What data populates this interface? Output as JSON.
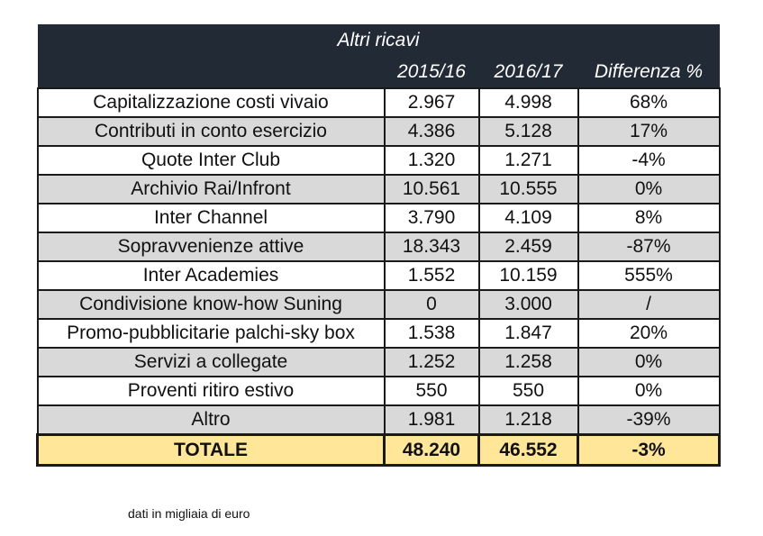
{
  "table": {
    "title": "Altri ricavi",
    "columns": [
      "",
      "2015/16",
      "2016/17",
      "Differenza %"
    ],
    "rows": [
      {
        "label": "Capitalizzazione costi vivaio",
        "y2015_16": "2.967",
        "y2016_17": "4.998",
        "diff": "68%"
      },
      {
        "label": "Contributi in conto esercizio",
        "y2015_16": "4.386",
        "y2016_17": "5.128",
        "diff": "17%"
      },
      {
        "label": "Quote Inter Club",
        "y2015_16": "1.320",
        "y2016_17": "1.271",
        "diff": "-4%"
      },
      {
        "label": "Archivio Rai/Infront",
        "y2015_16": "10.561",
        "y2016_17": "10.555",
        "diff": "0%"
      },
      {
        "label": "Inter Channel",
        "y2015_16": "3.790",
        "y2016_17": "4.109",
        "diff": "8%"
      },
      {
        "label": "Sopravvenienze attive",
        "y2015_16": "18.343",
        "y2016_17": "2.459",
        "diff": "-87%"
      },
      {
        "label": "Inter Academies",
        "y2015_16": "1.552",
        "y2016_17": "10.159",
        "diff": "555%"
      },
      {
        "label": "Condivisione know-how Suning",
        "y2015_16": "0",
        "y2016_17": "3.000",
        "diff": "/"
      },
      {
        "label": "Promo-pubblicitarie palchi-sky box",
        "y2015_16": "1.538",
        "y2016_17": "1.847",
        "diff": "20%"
      },
      {
        "label": "Servizi a collegate",
        "y2015_16": "1.252",
        "y2016_17": "1.258",
        "diff": "0%"
      },
      {
        "label": "Proventi ritiro estivo",
        "y2015_16": "550",
        "y2016_17": "550",
        "diff": "0%"
      },
      {
        "label": "Altro",
        "y2015_16": "1.981",
        "y2016_17": "1.218",
        "diff": "-39%"
      }
    ],
    "total": {
      "label": "TOTALE",
      "y2015_16": "48.240",
      "y2016_17": "46.552",
      "diff": "-3%"
    }
  },
  "footnote": "dati in migliaia di euro",
  "colors": {
    "header_bg": "#222a35",
    "row_alt_bg": "#d9d9d9",
    "total_bg": "#ffe699"
  }
}
